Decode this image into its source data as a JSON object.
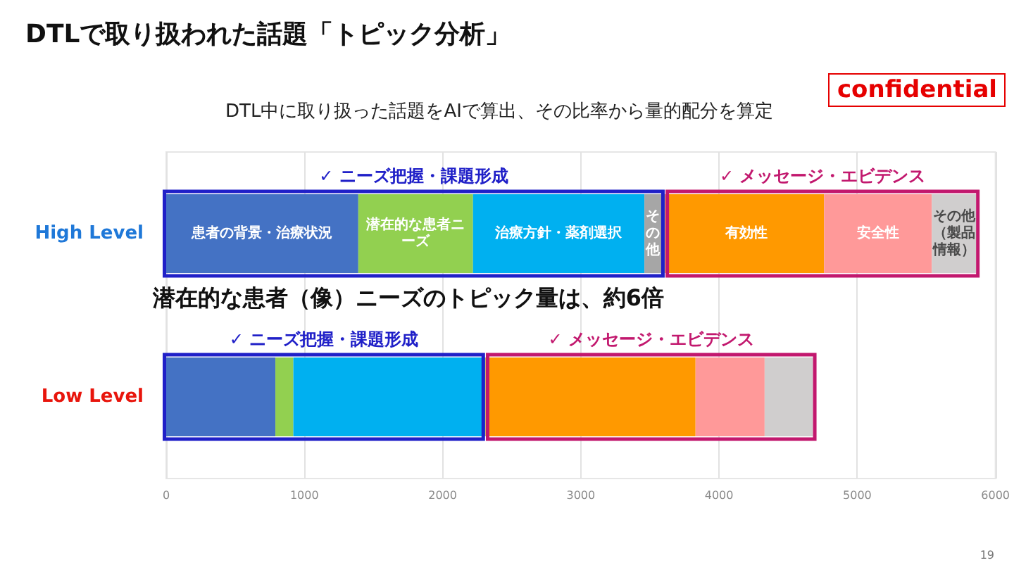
{
  "chart_data": {
    "type": "bar",
    "orientation": "horizontal",
    "title": "DTLで取り扱われた話題「トピック分析」",
    "subtitle": "DTL中に取り扱った話題をAIで算出、その比率から量的配分を算定",
    "categories": [
      "High Level",
      "Low Level"
    ],
    "series": [
      {
        "name": "患者の背景・治療状況",
        "color": "#4472c4",
        "values": [
          1390,
          790
        ],
        "base": [
          0,
          0
        ]
      },
      {
        "name": "潜在的な患者ニーズ",
        "color": "#92d050",
        "values": [
          830,
          130
        ],
        "base": [
          1390,
          790
        ]
      },
      {
        "name": "治療方針・薬剤選択",
        "color": "#00b0f0",
        "values": [
          1240,
          1390
        ],
        "base": [
          2220,
          920
        ]
      },
      {
        "name": "その他",
        "color": "#a6a6a6",
        "values": [
          150,
          null
        ],
        "base": [
          3460,
          null
        ]
      },
      {
        "name": "有効性",
        "color": "#ff9900",
        "values": [
          1150,
          1520
        ],
        "base": [
          3610,
          2310
        ]
      },
      {
        "name": "安全性",
        "color": "#ff9999",
        "values": [
          780,
          500
        ],
        "base": [
          4760,
          3830
        ]
      },
      {
        "name": "その他（製品情報）",
        "color": "#d0cece",
        "values": [
          320,
          350
        ],
        "base": [
          5540,
          4330
        ]
      },
      {
        "name": "✓ ニーズ把握・課題形成",
        "color": "#2020c8",
        "values": [
          3610,
          2310
        ],
        "base": [
          0,
          0
        ]
      },
      {
        "name": "✓ メッセージ・エビデンス",
        "color": "#c2186e",
        "values": [
          2250,
          2370
        ],
        "base": [
          3610,
          2310
        ]
      }
    ],
    "xlim": [
      0,
      6000
    ],
    "xticks": [
      0,
      1000,
      2000,
      3000,
      4000,
      5000,
      6000
    ],
    "grid": "x",
    "annotations": [
      "潜在的な患者（像）ニーズのトピック量は、約6倍",
      "confidential",
      "19"
    ]
  }
}
